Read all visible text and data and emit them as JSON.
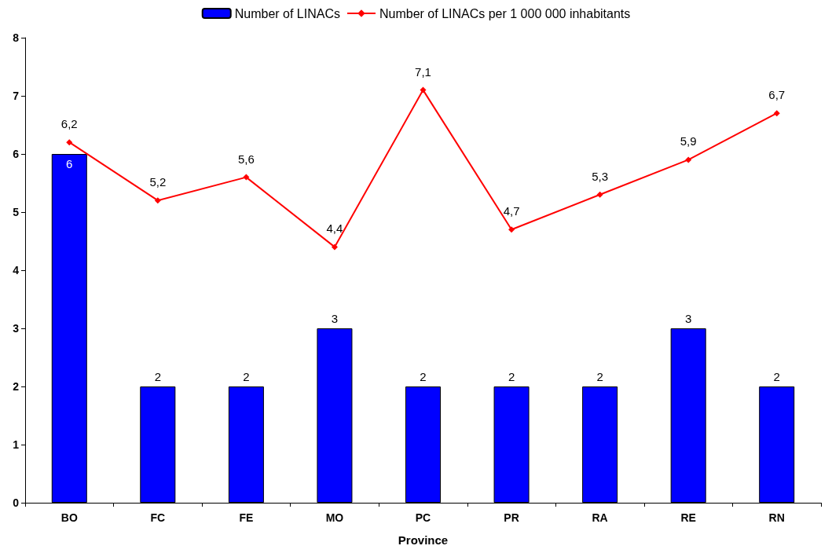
{
  "chart_data": {
    "type": "bar",
    "xlabel": "Province",
    "categories": [
      "BO",
      "FC",
      "FE",
      "MO",
      "PC",
      "PR",
      "RA",
      "RE",
      "RN"
    ],
    "series": [
      {
        "name": "Number of LINACs",
        "color": "#0000ff",
        "values": [
          6,
          2,
          2,
          3,
          2,
          2,
          2,
          3,
          2
        ],
        "value_labels": [
          "6",
          "2",
          "2",
          "3",
          "2",
          "2",
          "2",
          "3",
          "2"
        ]
      },
      {
        "name": "Number of LINACs per 1 000 000 inhabitants",
        "type": "line",
        "color": "#ff0000",
        "marker": "diamond",
        "values": [
          6.2,
          5.2,
          5.6,
          4.4,
          7.1,
          4.7,
          5.3,
          5.9,
          6.7
        ],
        "value_labels": [
          "6,2",
          "5,2",
          "5,6",
          "4,4",
          "7,1",
          "4,7",
          "5,3",
          "5,9",
          "6,7"
        ]
      }
    ],
    "ylim": [
      0,
      8
    ],
    "yticks": [
      0,
      1,
      2,
      3,
      4,
      5,
      6,
      7,
      8
    ],
    "grid": false,
    "legend": "top"
  }
}
